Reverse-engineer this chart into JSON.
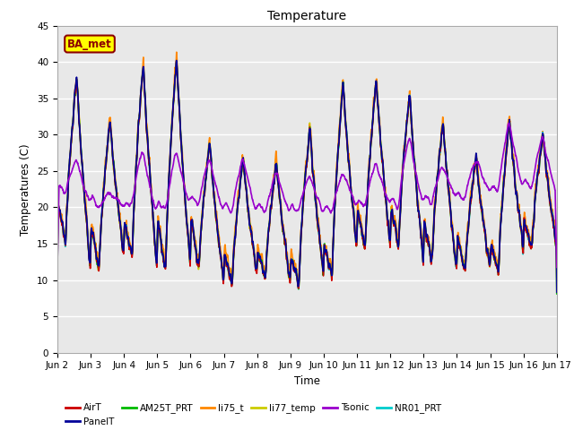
{
  "title": "Temperature",
  "xlabel": "Time",
  "ylabel": "Temperatures (C)",
  "ylim": [
    0,
    45
  ],
  "yticks": [
    0,
    5,
    10,
    15,
    20,
    25,
    30,
    35,
    40,
    45
  ],
  "xtick_labels": [
    "Jun 2",
    "Jun 3",
    "Jun 4",
    "Jun 5",
    "Jun 6",
    "Jun 7",
    "Jun 8",
    "Jun 9",
    "Jun 10",
    "Jun 11",
    "Jun 12",
    "Jun 13",
    "Jun 14",
    "Jun 15",
    "Jun 16",
    "Jun 17"
  ],
  "annotation_text": "BA_met",
  "annotation_color": "#8B0000",
  "annotation_bg": "#FFFF00",
  "series": {
    "AirT": {
      "color": "#CC0000",
      "lw": 1.2
    },
    "PanelT": {
      "color": "#000099",
      "lw": 1.2
    },
    "AM25T_PRT": {
      "color": "#00BB00",
      "lw": 1.2
    },
    "li75_t": {
      "color": "#FF8800",
      "lw": 1.2
    },
    "li77_temp": {
      "color": "#CCCC00",
      "lw": 1.2
    },
    "Tsonic": {
      "color": "#9900CC",
      "lw": 1.2
    },
    "NR01_PRT": {
      "color": "#00CCCC",
      "lw": 1.2
    }
  },
  "plot_bg": "#E8E8E8",
  "fig_bg": "#FFFFFF",
  "grid_color": "#FFFFFF",
  "n_days": 15,
  "pts_per_day": 144,
  "daily_peaks": [
    38,
    32,
    40,
    41,
    29,
    27,
    26,
    31,
    37,
    38,
    36,
    32,
    27,
    32,
    30
  ],
  "daily_mins": [
    15,
    11,
    13,
    11,
    11,
    9,
    10,
    9,
    10,
    14,
    14,
    12,
    11,
    11,
    14
  ],
  "tsonic_peaks": [
    27,
    22,
    28,
    28,
    27,
    27,
    25,
    25,
    25,
    26,
    30,
    26,
    27,
    32,
    30
  ],
  "tsonic_mins": [
    22,
    20,
    20,
    19,
    20,
    19,
    19,
    19,
    19,
    20,
    20,
    20,
    21,
    22,
    22
  ]
}
